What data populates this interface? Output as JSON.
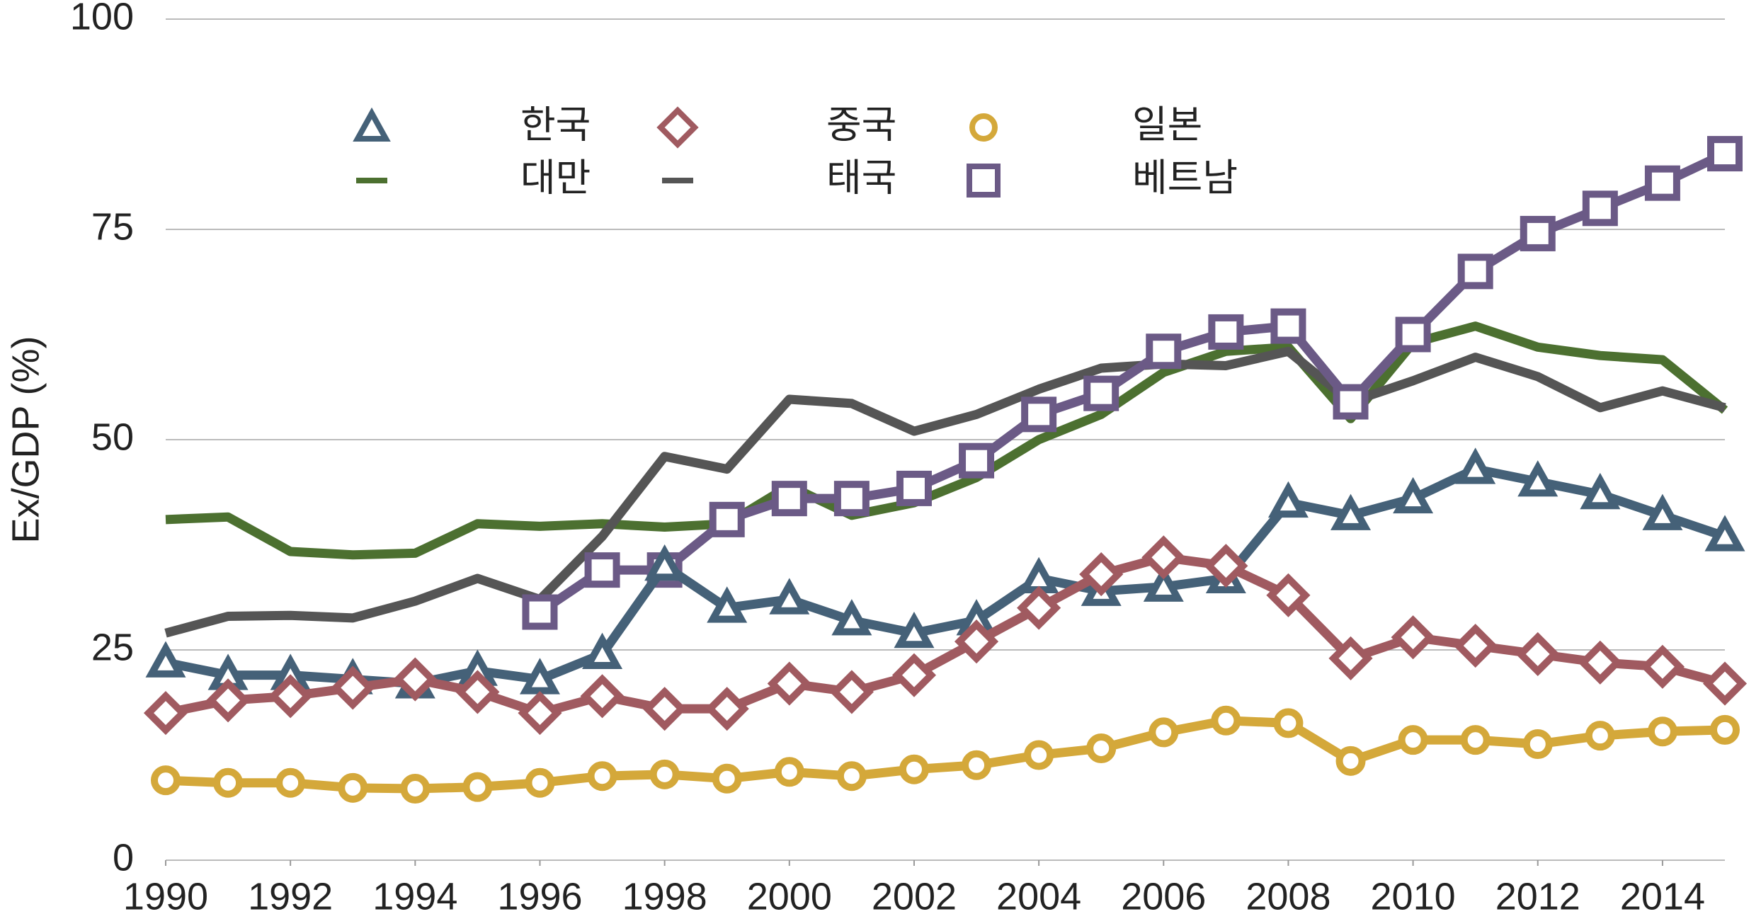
{
  "chart_data": {
    "type": "line",
    "ylabel": "Ex/GDP (%)",
    "x": [
      1990,
      1991,
      1992,
      1993,
      1994,
      1995,
      1996,
      1997,
      1998,
      1999,
      2000,
      2001,
      2002,
      2003,
      2004,
      2005,
      2006,
      2007,
      2008,
      2009,
      2010,
      2011,
      2012,
      2013,
      2014,
      2015
    ],
    "xlim": [
      1990,
      2015
    ],
    "xticks": [
      1990,
      1992,
      1994,
      1996,
      1998,
      2000,
      2002,
      2004,
      2006,
      2008,
      2010,
      2012,
      2014
    ],
    "ylim": [
      0,
      100
    ],
    "yticks": [
      0,
      25,
      50,
      75,
      100
    ],
    "grid": true,
    "legend": "top",
    "series": [
      {
        "name": "한국",
        "color": "#456178",
        "marker": "triangle",
        "values": [
          23.5,
          22,
          22,
          21.5,
          21,
          22.5,
          21.5,
          24.5,
          35,
          30,
          31,
          28.5,
          27,
          28.5,
          33.5,
          32,
          32.5,
          33.5,
          42.5,
          41,
          43,
          46.5,
          45,
          43.5,
          41,
          38.5
        ]
      },
      {
        "name": "중국",
        "color": "#a05a60",
        "marker": "diamond",
        "values": [
          17.5,
          19,
          19.5,
          20.5,
          21.5,
          20,
          17.5,
          19.5,
          18,
          18,
          21,
          20,
          22,
          26,
          30,
          34,
          36,
          35,
          31.5,
          24,
          26.5,
          25.5,
          24.5,
          23.5,
          23,
          21
        ]
      },
      {
        "name": "일본",
        "color": "#d4a83a",
        "marker": "circle",
        "values": [
          9.5,
          9.2,
          9.2,
          8.6,
          8.5,
          8.7,
          9.2,
          10,
          10.2,
          9.7,
          10.5,
          10,
          10.8,
          11.3,
          12.5,
          13.3,
          15.2,
          16.6,
          16.3,
          11.8,
          14.3,
          14.3,
          13.8,
          14.8,
          15.3,
          15.5
        ]
      },
      {
        "name": "대만",
        "color": "#4c7030",
        "marker": "none",
        "values": [
          40.5,
          40.8,
          36.7,
          36.3,
          36.5,
          40,
          39.7,
          40,
          39.6,
          40,
          44.5,
          41,
          42.5,
          45.5,
          50,
          53,
          58,
          60.5,
          61,
          52.5,
          61.5,
          63.5,
          61,
          60,
          59.5,
          53.5
        ]
      },
      {
        "name": "태국",
        "color": "#555555",
        "marker": "none",
        "values": [
          27,
          29,
          29.1,
          28.8,
          30.8,
          33.5,
          31,
          38.5,
          48,
          46.5,
          54.8,
          54.3,
          51,
          53,
          56,
          58.5,
          59,
          58.8,
          60.5,
          54.5,
          57,
          59.8,
          57.5,
          53.8,
          55.8,
          53.8
        ]
      },
      {
        "name": "베트남",
        "color": "#6b5a86",
        "marker": "square",
        "values": [
          null,
          null,
          null,
          null,
          null,
          null,
          29.5,
          34.5,
          34.5,
          40.5,
          43,
          43,
          44.2,
          47.5,
          53,
          55.5,
          60.5,
          62.8,
          63.5,
          54.5,
          62.5,
          70,
          74.5,
          77.5,
          80.5,
          84
        ]
      }
    ]
  }
}
